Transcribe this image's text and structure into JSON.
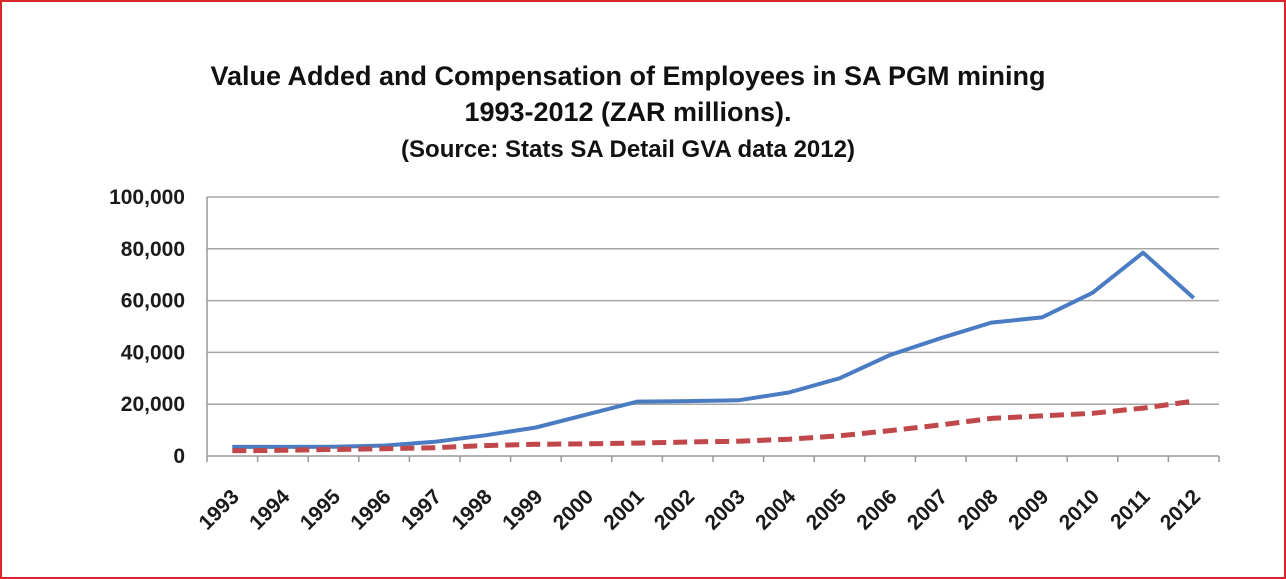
{
  "chart_data": {
    "type": "line",
    "title": "Value Added and Compensation of Employees in SA PGM mining",
    "title_line2": "1993-2012 (ZAR millions).",
    "subtitle": "(Source: Stats SA Detail GVA data 2012)",
    "x": [
      "1993",
      "1994",
      "1995",
      "1996",
      "1997",
      "1998",
      "1999",
      "2000",
      "2001",
      "2002",
      "2003",
      "2004",
      "2005",
      "2006",
      "2007",
      "2008",
      "2009",
      "2010",
      "2011",
      "2012"
    ],
    "yticks": [
      "0",
      "20,000",
      "40,000",
      "60,000",
      "80,000",
      "100,000"
    ],
    "ylim": [
      0,
      100000
    ],
    "grid": true,
    "legend": "none",
    "series": [
      {
        "color": "#4a7cc4",
        "style": "solid",
        "values": [
          3500,
          3500,
          3600,
          4000,
          5500,
          8000,
          11000,
          16000,
          21000,
          21200,
          21500,
          24500,
          30000,
          39000,
          45500,
          51500,
          53500,
          63000,
          78500,
          61000
        ]
      },
      {
        "color": "#c0474a",
        "style": "dashed",
        "values": [
          2000,
          2200,
          2500,
          2800,
          3200,
          4000,
          4500,
          4700,
          5000,
          5400,
          5700,
          6500,
          7800,
          9800,
          12000,
          14500,
          15500,
          16500,
          18500,
          21200
        ]
      }
    ]
  }
}
